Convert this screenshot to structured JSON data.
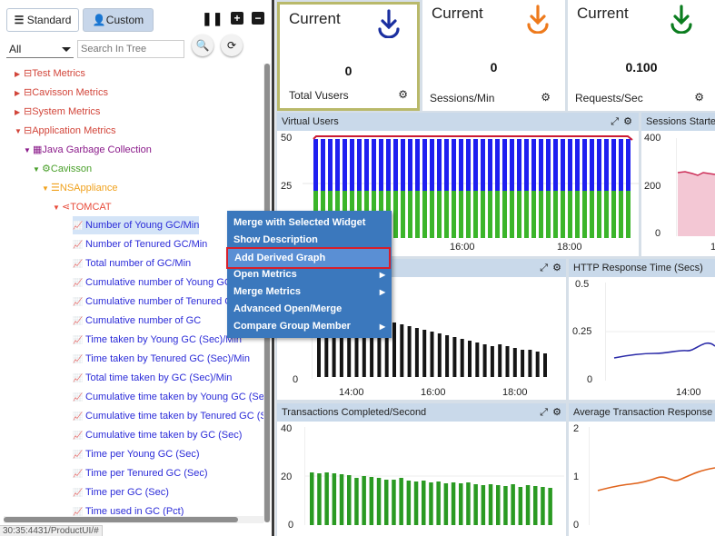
{
  "left_panel": {
    "tabs": [
      {
        "label": "Standard"
      },
      {
        "label": "Custom"
      }
    ],
    "filter": {
      "value": "All"
    },
    "search": {
      "placeholder": "Search In Tree"
    },
    "tree": {
      "top": [
        {
          "label": "Test Metrics"
        },
        {
          "label": "Cavisson Metrics"
        },
        {
          "label": "System Metrics"
        },
        {
          "label": "Application Metrics"
        }
      ],
      "java_gc": "Java Garbage Collection",
      "cavisson": "Cavisson",
      "nsappliance": "NSAppliance",
      "tomcat": "TOMCAT",
      "leaves": [
        "Number of Young GC/Min",
        "Number of Tenured GC/Min",
        "Total number of GC/Min",
        "Cumulative number of Young GC",
        "Cumulative number of Tenured GC",
        "Cumulative number of GC",
        "Time taken by Young GC (Sec)/Min",
        "Time taken by Tenured GC (Sec)/Min",
        "Total time taken by GC (Sec)/Min",
        "Cumulative time taken by Young GC (Sec)",
        "Cumulative time taken by Tenured GC (Sec)",
        "Cumulative time taken by GC (Sec)",
        "Time per Young GC (Sec)",
        "Time per Tenured GC (Sec)",
        "Time per GC (Sec)",
        "Time used in GC (Pct)"
      ]
    },
    "status_url": "30:35:4431/ProductUI/#"
  },
  "context_menu": {
    "items": [
      {
        "label": "Merge with Selected Widget",
        "submenu": false
      },
      {
        "label": "Show Description",
        "submenu": false
      },
      {
        "label": "Add Derived Graph",
        "submenu": false,
        "highlighted": true
      },
      {
        "label": "Open Metrics",
        "submenu": true
      },
      {
        "label": "Merge Metrics",
        "submenu": true
      },
      {
        "label": "Advanced Open/Merge",
        "submenu": false
      },
      {
        "label": "Compare Group Member",
        "submenu": true
      }
    ]
  },
  "cards": [
    {
      "caption": "Current",
      "value": "0",
      "label": "Total Vusers",
      "arrow_color": "#1a2fa0"
    },
    {
      "caption": "Current",
      "value": "0",
      "label": "Sessions/Min",
      "arrow_color": "#ee7a1c"
    },
    {
      "caption": "Current",
      "value": "0.100",
      "label": "Requests/Sec",
      "arrow_color": "#0b7d1f"
    }
  ],
  "panels": {
    "virtual_users": {
      "title": "Virtual Users",
      "y_ticks": [
        "50",
        "25"
      ],
      "x_ticks": [
        "16:00",
        "18:00"
      ]
    },
    "sessions_started": {
      "title": "Sessions Starte",
      "y_ticks": [
        "400",
        "200",
        "0"
      ],
      "x_ticks": [
        "1"
      ]
    },
    "mid_left": {
      "title": "",
      "y_ticks": [
        "0"
      ],
      "x_ticks": [
        "14:00",
        "16:00",
        "18:00"
      ]
    },
    "http_response": {
      "title": "HTTP Response Time (Secs)",
      "y_ticks": [
        "0.5",
        "0.25",
        "0"
      ],
      "x_ticks": [
        "14:00"
      ]
    },
    "transactions": {
      "title": "Transactions Completed/Second",
      "y_ticks": [
        "40",
        "20",
        "0"
      ]
    },
    "avg_transaction": {
      "title": "Average Transaction Response",
      "y_ticks": [
        "2",
        "1",
        "0"
      ]
    }
  },
  "colors": {
    "vusers_blue": "#1f1ff0",
    "vusers_green": "#3bb52a",
    "vusers_line": "#cc1b33",
    "black_bars": "#151515",
    "tx_green": "#2a9a22",
    "http_line": "#2a2aa8",
    "avg_line": "#e0641d",
    "sessions_fill": "#f3c7d4",
    "sessions_line": "#cc2e58"
  }
}
